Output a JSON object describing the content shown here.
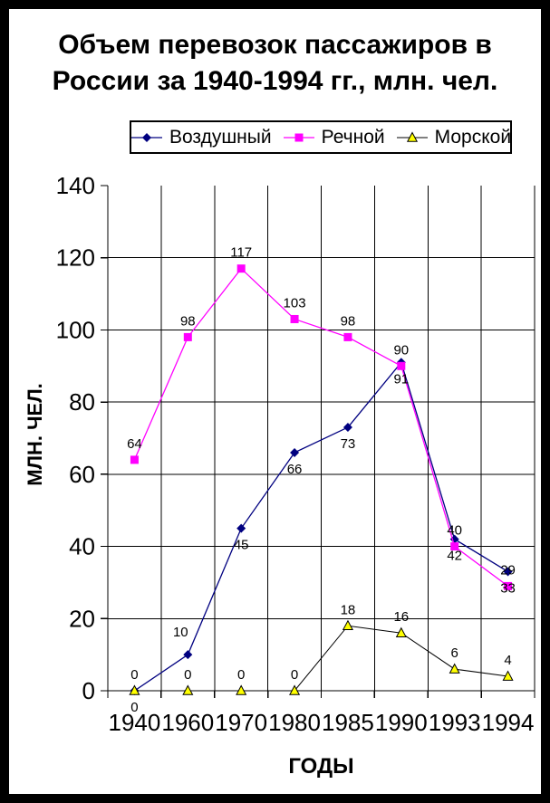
{
  "title": {
    "text": "Объем перевозок пассажиров в России за 1940-1994 гг., млн. чел.",
    "line1": "Объем перевозок пассажиров в",
    "line2": "России за 1940-1994 гг., млн. чел."
  },
  "chart_data": {
    "type": "line",
    "title": "Объем перевозок пассажиров в России за 1940-1994 гг., млн. чел.",
    "categories": [
      "1940",
      "1960",
      "1970",
      "1980",
      "1985",
      "1990",
      "1993",
      "1994"
    ],
    "series": [
      {
        "id": "air",
        "name": "Воздушный",
        "color": "#000080",
        "marker": "diamond",
        "values": [
          0,
          10,
          45,
          66,
          73,
          91,
          42,
          33
        ]
      },
      {
        "id": "river",
        "name": "Речной",
        "color": "#FF00FF",
        "marker": "square",
        "values": [
          64,
          98,
          117,
          103,
          98,
          90,
          40,
          29
        ]
      },
      {
        "id": "sea",
        "name": "Морской",
        "color": "#000000",
        "marker": "triangle",
        "marker_fill": "#FFFF00",
        "values": [
          0,
          0,
          0,
          0,
          18,
          16,
          6,
          4
        ]
      }
    ],
    "xlabel": "ГОДЫ",
    "ylabel": "МЛН. ЧЕЛ.",
    "ylim": [
      0,
      140
    ],
    "y_ticks": [
      0,
      20,
      40,
      60,
      80,
      100,
      120,
      140
    ],
    "grid": true,
    "data_labels": true,
    "legend_position": "top"
  }
}
